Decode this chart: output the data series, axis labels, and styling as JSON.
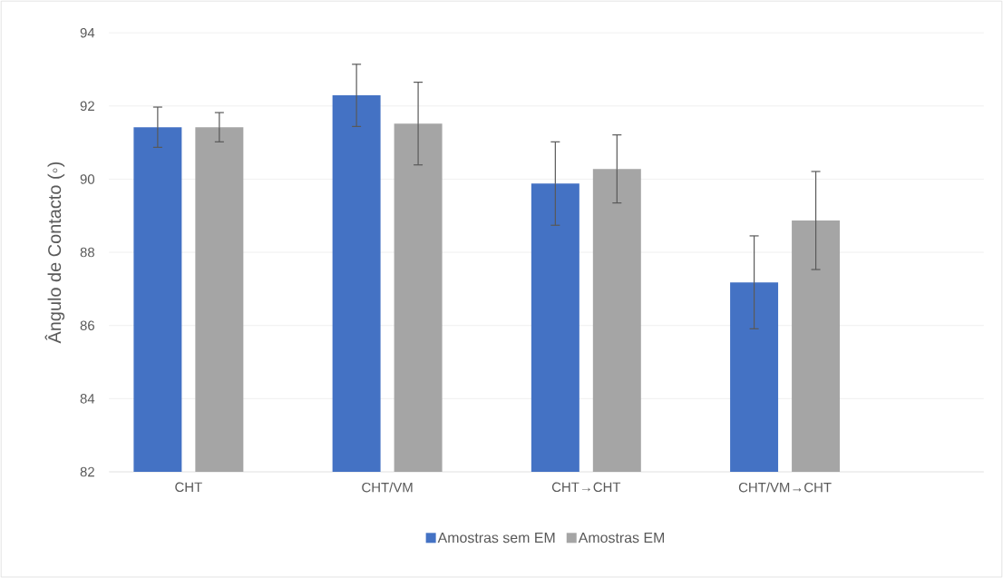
{
  "chart_data": {
    "type": "bar",
    "ylabel": "Ângulo de Contacto (◦)",
    "categories": [
      "CHT",
      "CHT/VM",
      "CHT→CHT",
      "CHT/VM→CHT"
    ],
    "series": [
      {
        "name": "Amostras sem EM",
        "color": "#4472c4",
        "values": [
          91.42,
          92.29,
          89.88,
          87.18
        ],
        "errors": [
          0.55,
          0.85,
          1.14,
          1.27
        ]
      },
      {
        "name": "Amostras EM",
        "color": "#a5a5a5",
        "values": [
          91.42,
          91.52,
          90.28,
          88.87
        ],
        "errors": [
          0.4,
          1.13,
          0.93,
          1.34
        ]
      }
    ],
    "ylim": [
      82,
      94
    ],
    "yticks": [
      82,
      84,
      86,
      88,
      90,
      92,
      94
    ],
    "grid": "y",
    "legend": "bottom"
  }
}
